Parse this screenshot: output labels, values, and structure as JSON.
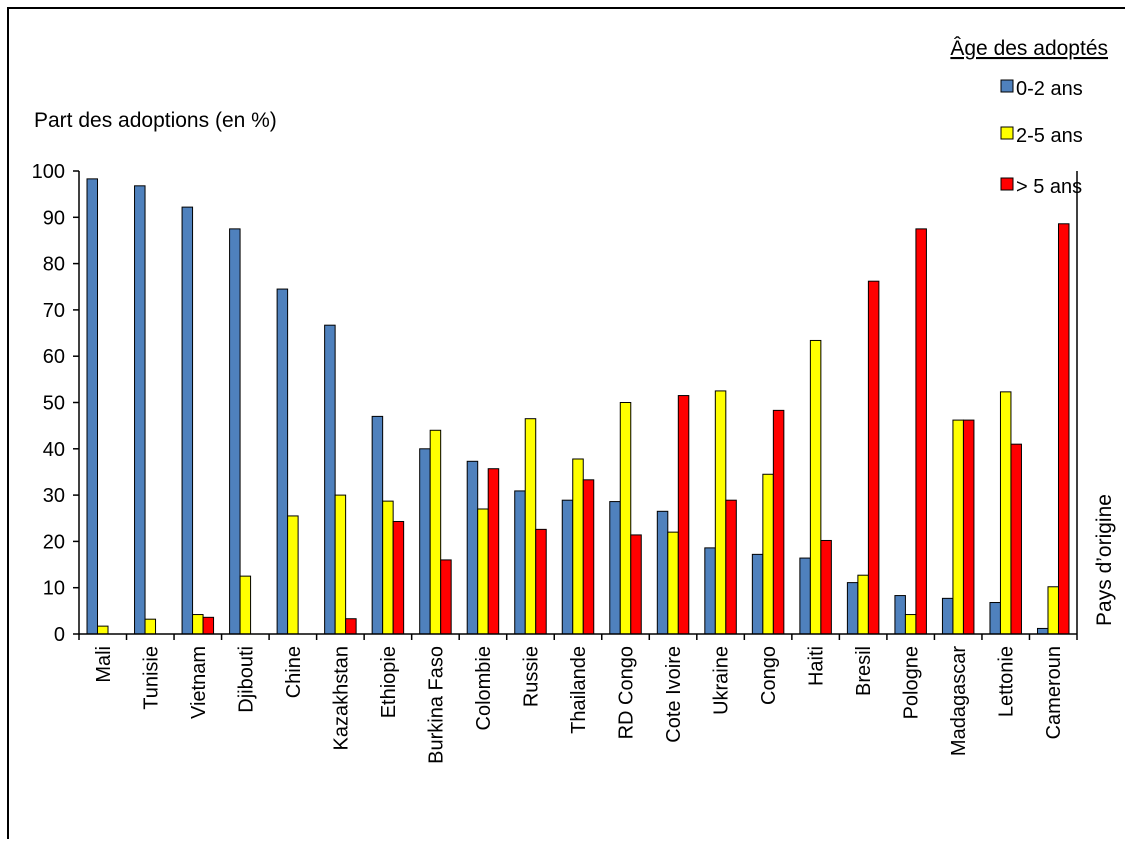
{
  "chart_data": {
    "type": "bar",
    "ylabel": "Part des adoptions (en %)",
    "xlabel": "Pays d’origine",
    "legend_title": "Âge des adoptés",
    "legend_position": "top-right",
    "ylim": [
      0,
      100
    ],
    "yticks": [
      0,
      10,
      20,
      30,
      40,
      50,
      60,
      70,
      80,
      90,
      100
    ],
    "grid": false,
    "categories": [
      "Mali",
      "Tunisie",
      "Vietnam",
      "Djibouti",
      "Chine",
      "Kazakhstan",
      "Ethiopie",
      "Burkina Faso",
      "Colombie",
      "Russie",
      "Thailande",
      "RD Congo",
      "Cote Ivoire",
      "Ukraine",
      "Congo",
      "Haiti",
      "Bresil",
      "Pologne",
      "Madagascar",
      "Lettonie",
      "Cameroun"
    ],
    "series": [
      {
        "name": "0-2 ans",
        "color": "#4F81BD",
        "values": [
          98.3,
          96.8,
          92.2,
          87.5,
          74.5,
          66.7,
          47.0,
          40.0,
          37.3,
          30.9,
          28.9,
          28.6,
          26.5,
          18.6,
          17.2,
          16.4,
          11.1,
          8.3,
          7.7,
          6.8,
          1.2
        ]
      },
      {
        "name": "2-5 ans",
        "color": "#FFFF00",
        "values": [
          1.7,
          3.2,
          4.2,
          12.5,
          25.5,
          30.0,
          28.7,
          44.0,
          27.0,
          46.5,
          37.8,
          50.0,
          22.0,
          52.5,
          34.5,
          63.4,
          12.7,
          4.2,
          46.2,
          52.3,
          10.2
        ]
      },
      {
        "name": "> 5 ans",
        "color": "#FF0000",
        "values": [
          0,
          0,
          3.6,
          0,
          0,
          3.3,
          24.3,
          16.0,
          35.7,
          22.6,
          33.3,
          21.4,
          51.5,
          28.9,
          48.3,
          20.2,
          76.2,
          87.5,
          46.2,
          41.0,
          88.6
        ]
      }
    ]
  }
}
